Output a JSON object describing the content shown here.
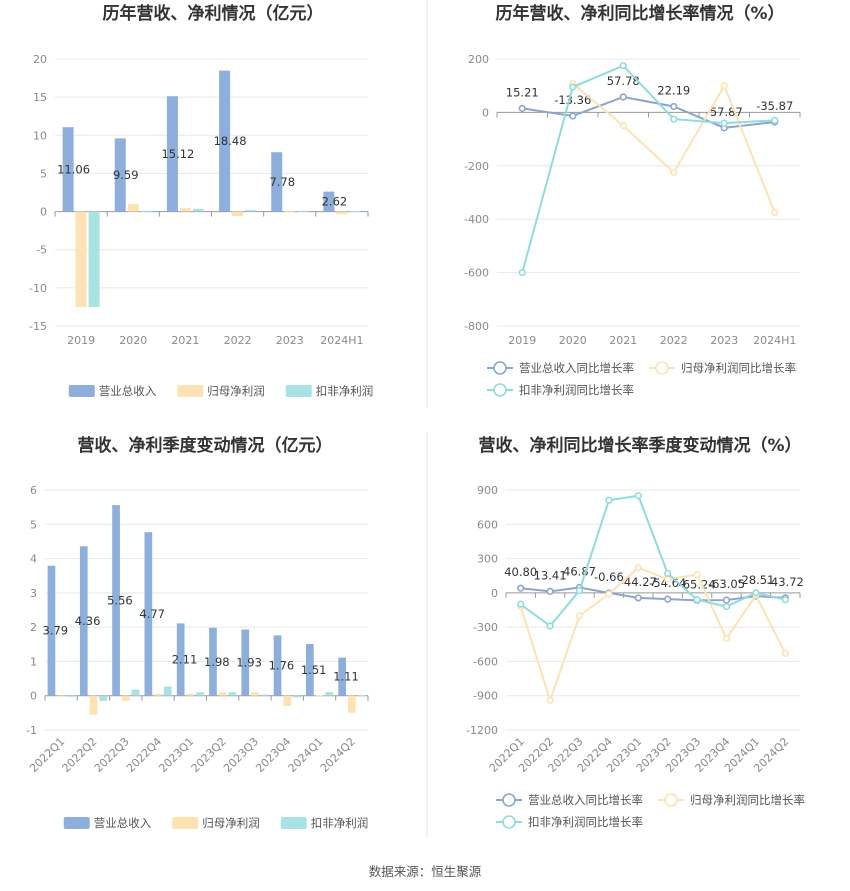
{
  "colors": {
    "revenue": "#8eaedc",
    "parent_profit": "#fde3b3",
    "deducted_profit": "#a8e2e2"
  },
  "chart_data": [
    {
      "type": "bar",
      "title": "历年营收、净利情况（亿元）",
      "categories": [
        "2019",
        "2020",
        "2021",
        "2022",
        "2023",
        "2024H1"
      ],
      "ylim": [
        -15,
        20
      ],
      "yticks": [
        -15,
        -10,
        -5,
        0,
        5,
        10,
        15,
        20
      ],
      "series": [
        {
          "name": "营业总收入",
          "color_key": "revenue",
          "values": [
            11.06,
            9.59,
            15.12,
            18.48,
            7.78,
            2.62
          ],
          "labels": [
            "11.06",
            "9.59",
            "15.12",
            "18.48",
            "7.78",
            "2.62"
          ]
        },
        {
          "name": "归母净利润",
          "color_key": "parent_profit",
          "values": [
            -12.5,
            1.0,
            0.45,
            -0.6,
            0.1,
            -0.35
          ]
        },
        {
          "name": "扣非净利润",
          "color_key": "deducted_profit",
          "values": [
            -12.5,
            0.1,
            0.35,
            0.2,
            0.1,
            0.05
          ]
        }
      ]
    },
    {
      "type": "line",
      "title": "历年营收、净利同比增长率情况（%）",
      "categories": [
        "2019",
        "2020",
        "2021",
        "2022",
        "2023",
        "2024H1"
      ],
      "ylim": [
        -800,
        200
      ],
      "yticks": [
        -800,
        -600,
        -400,
        -200,
        0,
        200
      ],
      "series": [
        {
          "name": "营业总收入同比增长率",
          "color": "#8ba5cc",
          "values": [
            15.21,
            -13.36,
            57.78,
            22.19,
            -57.87,
            -35.87
          ],
          "labels": [
            "15.21",
            "-13.36",
            "57.78",
            "22.19",
            "-57.87",
            "-35.87"
          ]
        },
        {
          "name": "归母净利润同比增长率",
          "color": "#fde3b3",
          "values": [
            null,
            108,
            -50,
            -225,
            100,
            -375
          ]
        },
        {
          "name": "扣非净利润同比增长率",
          "color": "#8fdcdc",
          "values": [
            -600,
            95,
            175,
            -25,
            -40,
            -30
          ]
        }
      ]
    },
    {
      "type": "bar",
      "title": "营收、净利季度变动情况（亿元）",
      "categories": [
        "2022Q1",
        "2022Q2",
        "2022Q3",
        "2022Q4",
        "2023Q1",
        "2023Q2",
        "2023Q3",
        "2023Q4",
        "2024Q1",
        "2024Q2"
      ],
      "ylim": [
        -1,
        6
      ],
      "yticks": [
        -1,
        0,
        1,
        2,
        3,
        4,
        5,
        6
      ],
      "series": [
        {
          "name": "营业总收入",
          "color_key": "revenue",
          "values": [
            3.79,
            4.36,
            5.56,
            4.77,
            2.11,
            1.98,
            1.93,
            1.76,
            1.51,
            1.11
          ],
          "labels": [
            "3.79",
            "4.36",
            "5.56",
            "4.77",
            "2.11",
            "1.98",
            "1.93",
            "1.76",
            "1.51",
            "1.11"
          ]
        },
        {
          "name": "归母净利润",
          "color_key": "parent_profit",
          "values": [
            -0.03,
            -0.55,
            -0.15,
            0.05,
            0.05,
            0.1,
            0.1,
            -0.3,
            0.02,
            -0.5
          ]
        },
        {
          "name": "扣非净利润",
          "color_key": "deducted_profit",
          "values": [
            -0.02,
            -0.15,
            0.18,
            0.27,
            0.1,
            0.1,
            0.03,
            -0.05,
            0.1,
            0.02
          ]
        }
      ]
    },
    {
      "type": "line",
      "title": "营收、净利同比增长率季度变动情况（%）",
      "categories": [
        "2022Q1",
        "2022Q2",
        "2022Q3",
        "2022Q4",
        "2023Q1",
        "2023Q2",
        "2023Q3",
        "2023Q4",
        "2024Q1",
        "2024Q2"
      ],
      "ylim": [
        -1200,
        900
      ],
      "yticks": [
        -1200,
        -900,
        -600,
        -300,
        0,
        300,
        600,
        900
      ],
      "series": [
        {
          "name": "营业总收入同比增长率",
          "color": "#8ba5cc",
          "values": [
            40.8,
            13.41,
            46.87,
            -0.66,
            -44.27,
            -54.64,
            -65.24,
            -63.05,
            -28.51,
            -43.72
          ],
          "labels": [
            "40.80",
            "13.41",
            "46.87",
            "-0.66",
            "-44.27",
            "-54.64",
            "-65.24",
            "-63.05",
            "-28.51",
            "-43.72"
          ]
        },
        {
          "name": "归母净利润同比增长率",
          "color": "#fde3b3",
          "values": [
            -120,
            -940,
            -200,
            -10,
            220,
            120,
            160,
            -400,
            -20,
            -530
          ]
        },
        {
          "name": "扣非净利润同比增长率",
          "color": "#8fdcdc",
          "values": [
            -100,
            -290,
            20,
            810,
            850,
            170,
            -60,
            -120,
            0,
            -60
          ]
        }
      ]
    }
  ],
  "footer": {
    "source": "数据来源：恒生聚源"
  }
}
